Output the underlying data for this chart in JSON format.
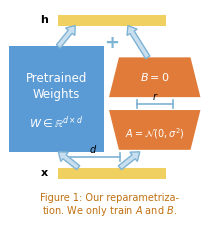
{
  "bg_color": "#ffffff",
  "blue_box_color": "#5b9bd5",
  "blue_text_color": "#ffffff",
  "orange_color": "#e07b39",
  "orange_text_color": "#ffffff",
  "yellow_color": "#f0d060",
  "arrow_color": "#7fb3d3",
  "arrow_face": "#c8dff0",
  "label_h": "h",
  "label_x": "x",
  "label_d": "d",
  "label_r": "r",
  "label_B": "$B = 0$",
  "label_A": "$A = \\mathcal{N}(0,\\sigma^2)$",
  "label_W": "$W \\in \\mathbb{R}^{d\\times d}$",
  "label_pretrained": "Pretrained",
  "label_weights": "Weights",
  "caption_line1": "Figure 1: Our reparametriza-",
  "caption_line2": "tion. We only train $A$ and $B$.",
  "caption_color": "#c07010",
  "caption_fontsize": 7.0
}
